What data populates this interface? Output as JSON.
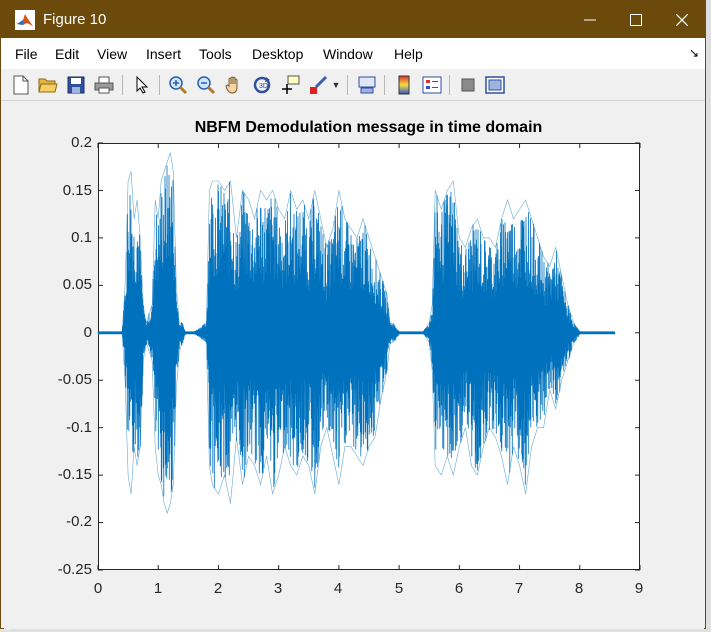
{
  "window": {
    "title": "Figure 10",
    "minimize_label": "",
    "maximize_label": "",
    "close_label": ""
  },
  "menu": {
    "items": [
      "File",
      "Edit",
      "View",
      "Insert",
      "Tools",
      "Desktop",
      "Window",
      "Help"
    ],
    "overflow_icon": "dock-arrow-icon"
  },
  "toolbar": {
    "tools": [
      "new-figure-icon",
      "open-file-icon",
      "save-icon",
      "print-icon",
      "pointer-icon",
      "zoom-in-icon",
      "zoom-out-icon",
      "pan-hand-icon",
      "rotate-3d-icon",
      "data-cursor-icon",
      "brush-icon",
      "link-plot-icon",
      "colorbar-icon",
      "legend-icon",
      "hide-plot-tools-icon",
      "show-plot-tools-icon"
    ]
  },
  "colors": {
    "titlebar": "#6c4a0c",
    "line": "#0072bd",
    "axes": "#262626"
  },
  "chart_data": {
    "type": "line",
    "title": "NBFM Demodulation message in time domain",
    "xlabel": "",
    "ylabel": "",
    "xlim": [
      0,
      9
    ],
    "ylim": [
      -0.25,
      0.2
    ],
    "xticks": [
      "0",
      "1",
      "2",
      "3",
      "4",
      "5",
      "6",
      "7",
      "8",
      "9"
    ],
    "yticks": [
      "0.2",
      "0.15",
      "0.1",
      "0.05",
      "0",
      "-0.05",
      "-0.1",
      "-0.15",
      "-0.2",
      "-0.25"
    ],
    "grid": false,
    "series": [
      {
        "signal_extent": [
          0.0,
          8.58
        ],
        "envelope": {
          "t": [
            0.0,
            0.4,
            0.45,
            0.5,
            0.55,
            0.6,
            0.65,
            0.7,
            0.75,
            0.8,
            0.9,
            0.95,
            1.0,
            1.05,
            1.1,
            1.15,
            1.2,
            1.25,
            1.3,
            1.35,
            1.4,
            1.45,
            1.6,
            1.8,
            1.85,
            1.9,
            2.0,
            2.1,
            2.2,
            2.3,
            2.4,
            2.5,
            2.6,
            2.7,
            2.8,
            2.9,
            3.0,
            3.1,
            3.2,
            3.3,
            3.4,
            3.5,
            3.6,
            3.7,
            3.8,
            3.9,
            4.0,
            4.1,
            4.2,
            4.3,
            4.4,
            4.5,
            4.6,
            4.7,
            4.8,
            4.85,
            4.9,
            5.0,
            5.4,
            5.5,
            5.55,
            5.6,
            5.7,
            5.8,
            5.9,
            6.0,
            6.1,
            6.2,
            6.3,
            6.4,
            6.5,
            6.6,
            6.7,
            6.8,
            6.9,
            7.0,
            7.1,
            7.2,
            7.3,
            7.4,
            7.5,
            7.6,
            7.7,
            7.8,
            7.9,
            8.0,
            8.58
          ],
          "upper": [
            0.0,
            0.0,
            0.05,
            0.16,
            0.17,
            0.12,
            0.14,
            0.1,
            0.03,
            0.01,
            0.03,
            0.14,
            0.12,
            0.16,
            0.17,
            0.18,
            0.19,
            0.17,
            0.05,
            0.01,
            0.01,
            0.0,
            0.0,
            0.01,
            0.15,
            0.16,
            0.16,
            0.15,
            0.16,
            0.1,
            0.15,
            0.14,
            0.12,
            0.15,
            0.14,
            0.15,
            0.13,
            0.12,
            0.15,
            0.13,
            0.14,
            0.12,
            0.15,
            0.12,
            0.09,
            0.11,
            0.15,
            0.12,
            0.11,
            0.1,
            0.12,
            0.1,
            0.08,
            0.06,
            0.04,
            0.01,
            0.01,
            0.0,
            0.0,
            0.01,
            0.03,
            0.15,
            0.13,
            0.15,
            0.16,
            0.1,
            0.09,
            0.11,
            0.12,
            0.1,
            0.1,
            0.09,
            0.12,
            0.14,
            0.12,
            0.13,
            0.14,
            0.12,
            0.1,
            0.08,
            0.07,
            0.09,
            0.06,
            0.03,
            0.01,
            0.0,
            0.0
          ],
          "lower": [
            0.0,
            0.0,
            -0.05,
            -0.15,
            -0.17,
            -0.12,
            -0.14,
            -0.12,
            -0.03,
            -0.01,
            -0.03,
            -0.12,
            -0.15,
            -0.16,
            -0.18,
            -0.19,
            -0.18,
            -0.16,
            -0.06,
            -0.02,
            -0.01,
            0.0,
            0.0,
            -0.01,
            -0.14,
            -0.16,
            -0.17,
            -0.15,
            -0.18,
            -0.11,
            -0.16,
            -0.13,
            -0.14,
            -0.16,
            -0.13,
            -0.17,
            -0.15,
            -0.12,
            -0.14,
            -0.15,
            -0.13,
            -0.14,
            -0.17,
            -0.12,
            -0.1,
            -0.13,
            -0.16,
            -0.12,
            -0.12,
            -0.13,
            -0.14,
            -0.12,
            -0.11,
            -0.07,
            -0.04,
            -0.01,
            -0.01,
            0.0,
            0.0,
            -0.01,
            -0.04,
            -0.14,
            -0.15,
            -0.13,
            -0.15,
            -0.12,
            -0.1,
            -0.14,
            -0.15,
            -0.12,
            -0.1,
            -0.11,
            -0.13,
            -0.16,
            -0.12,
            -0.14,
            -0.17,
            -0.12,
            -0.1,
            -0.1,
            -0.06,
            -0.08,
            -0.05,
            -0.03,
            -0.01,
            0.0,
            0.0
          ]
        }
      }
    ]
  }
}
